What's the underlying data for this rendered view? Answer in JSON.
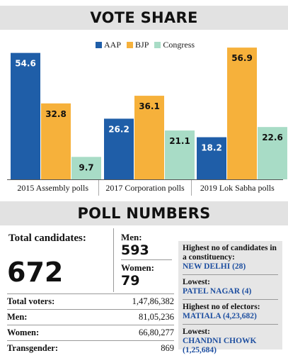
{
  "vote_title": "VOTE SHARE",
  "poll_title": "POLL NUMBERS",
  "colors": {
    "AAP": "#1f5ea8",
    "BJP": "#f6b13b",
    "Congress": "#a8dcc6"
  },
  "chart_data": {
    "type": "bar",
    "categories": [
      "2015 Assembly polls",
      "2017 Corporation polls",
      "2019 Lok Sabha polls"
    ],
    "series": [
      {
        "name": "AAP",
        "values": [
          54.6,
          26.2,
          18.2
        ]
      },
      {
        "name": "BJP",
        "values": [
          32.8,
          36.1,
          56.9
        ]
      },
      {
        "name": "Congress",
        "values": [
          9.7,
          21.1,
          22.6
        ]
      }
    ],
    "ylim": [
      0,
      60
    ],
    "legend": "top-right",
    "grid": false
  },
  "poll": {
    "total_label": "Total candidates:",
    "total_value": "672",
    "men_label": "Men:",
    "men_value": "593",
    "women_label": "Women:",
    "women_value": "79",
    "voters": [
      {
        "name": "Total voters:",
        "value": "1,47,86,382"
      },
      {
        "name": "Men:",
        "value": "81,05,236"
      },
      {
        "name": "Women:",
        "value": "66,80,277"
      },
      {
        "name": "Transgender:",
        "value": "869"
      }
    ],
    "info": [
      {
        "label": "Highest no of candidates in a constituency:",
        "value": "NEW DELHI (28)"
      },
      {
        "label": "Lowest:",
        "value": "PATEL NAGAR (4)"
      },
      {
        "label": "Highest no of electors:",
        "value": "MATIALA (4,23,682)"
      },
      {
        "label": "Lowest:",
        "value": "CHANDNI CHOWK (1,25,684)"
      }
    ]
  }
}
